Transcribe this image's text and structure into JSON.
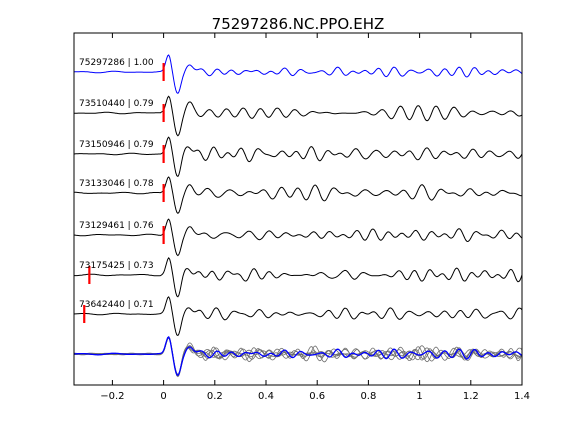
{
  "chart_data": {
    "type": "line",
    "title": "75297286.NC.PPO.EHZ",
    "xlabel": "",
    "ylabel": "",
    "xlim": [
      -0.35,
      1.4
    ],
    "x_ticks": [
      -0.2,
      0,
      0.2,
      0.4,
      0.6,
      0.8,
      1,
      1.2,
      1.4
    ],
    "x_tick_labels": [
      "−0.2",
      "0",
      "0.2",
      "0.4",
      "0.6",
      "0.8",
      "1",
      "1.2",
      "1.4"
    ],
    "grid": false,
    "colors": {
      "reference": "#0000ff",
      "trace": "#000000",
      "pick": "#ff0000",
      "stack_trace": "#6e6e6e"
    },
    "traces": [
      {
        "label": "75297286 | 1.00",
        "event_id": "75297286",
        "correlation": 1.0,
        "pick_time": 0.0,
        "reference": true,
        "seed": 1
      },
      {
        "label": "73510440 | 0.79",
        "event_id": "73510440",
        "correlation": 0.79,
        "pick_time": 0.0,
        "reference": false,
        "seed": 2
      },
      {
        "label": "73150946 | 0.79",
        "event_id": "73150946",
        "correlation": 0.79,
        "pick_time": 0.0,
        "reference": false,
        "seed": 3
      },
      {
        "label": "73133046 | 0.78",
        "event_id": "73133046",
        "correlation": 0.78,
        "pick_time": 0.0,
        "reference": false,
        "seed": 4
      },
      {
        "label": "73129461 | 0.76",
        "event_id": "73129461",
        "correlation": 0.76,
        "pick_time": 0.0,
        "reference": false,
        "seed": 5
      },
      {
        "label": "73175425 | 0.73",
        "event_id": "73175425",
        "correlation": 0.73,
        "pick_time": -0.29,
        "reference": false,
        "seed": 6
      },
      {
        "label": "73642440 | 0.71",
        "event_id": "73642440",
        "correlation": 0.71,
        "pick_time": -0.31,
        "reference": false,
        "seed": 7
      }
    ],
    "overlay": {
      "description": "all traces overlaid, reference in blue"
    }
  }
}
